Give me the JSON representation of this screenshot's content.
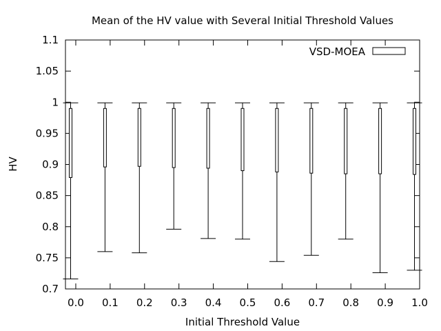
{
  "chart_data": {
    "type": "boxplot",
    "title": "Mean of the HV value with Several Initial Threshold Values",
    "xlabel": "Initial Threshold Value",
    "ylabel": "HV",
    "x_ticks": [
      "0.0",
      "0.1",
      "0.2",
      "0.3",
      "0.4",
      "0.5",
      "0.6",
      "0.7",
      "0.8",
      "0.9",
      "1.0"
    ],
    "y_ticks": [
      "0.7",
      "0.75",
      "0.8",
      "0.85",
      "0.9",
      "0.95",
      "1",
      "1.05",
      "1.1"
    ],
    "xlim": [
      -0.03,
      1.0
    ],
    "ylim": [
      0.7,
      1.1
    ],
    "grid": false,
    "legend_position": "top-right",
    "series": [
      {
        "name": "VSD-MOEA",
        "boxes": [
          {
            "x": 0.0,
            "whisker_low": 0.716,
            "q1": 0.879,
            "q3": 0.99,
            "whisker_high": 0.999
          },
          {
            "x": 0.1,
            "whisker_low": 0.76,
            "q1": 0.896,
            "q3": 0.99,
            "whisker_high": 0.999
          },
          {
            "x": 0.2,
            "whisker_low": 0.758,
            "q1": 0.897,
            "q3": 0.99,
            "whisker_high": 0.999
          },
          {
            "x": 0.3,
            "whisker_low": 0.796,
            "q1": 0.895,
            "q3": 0.99,
            "whisker_high": 0.999
          },
          {
            "x": 0.4,
            "whisker_low": 0.781,
            "q1": 0.894,
            "q3": 0.99,
            "whisker_high": 0.999
          },
          {
            "x": 0.5,
            "whisker_low": 0.78,
            "q1": 0.89,
            "q3": 0.99,
            "whisker_high": 0.999
          },
          {
            "x": 0.6,
            "whisker_low": 0.744,
            "q1": 0.888,
            "q3": 0.99,
            "whisker_high": 0.999
          },
          {
            "x": 0.7,
            "whisker_low": 0.754,
            "q1": 0.886,
            "q3": 0.99,
            "whisker_high": 0.999
          },
          {
            "x": 0.8,
            "whisker_low": 0.78,
            "q1": 0.885,
            "q3": 0.99,
            "whisker_high": 0.999
          },
          {
            "x": 0.9,
            "whisker_low": 0.726,
            "q1": 0.885,
            "q3": 0.99,
            "whisker_high": 0.999
          },
          {
            "x": 1.0,
            "whisker_low": 0.73,
            "q1": 0.884,
            "q3": 0.99,
            "whisker_high": 0.999
          }
        ]
      }
    ]
  }
}
